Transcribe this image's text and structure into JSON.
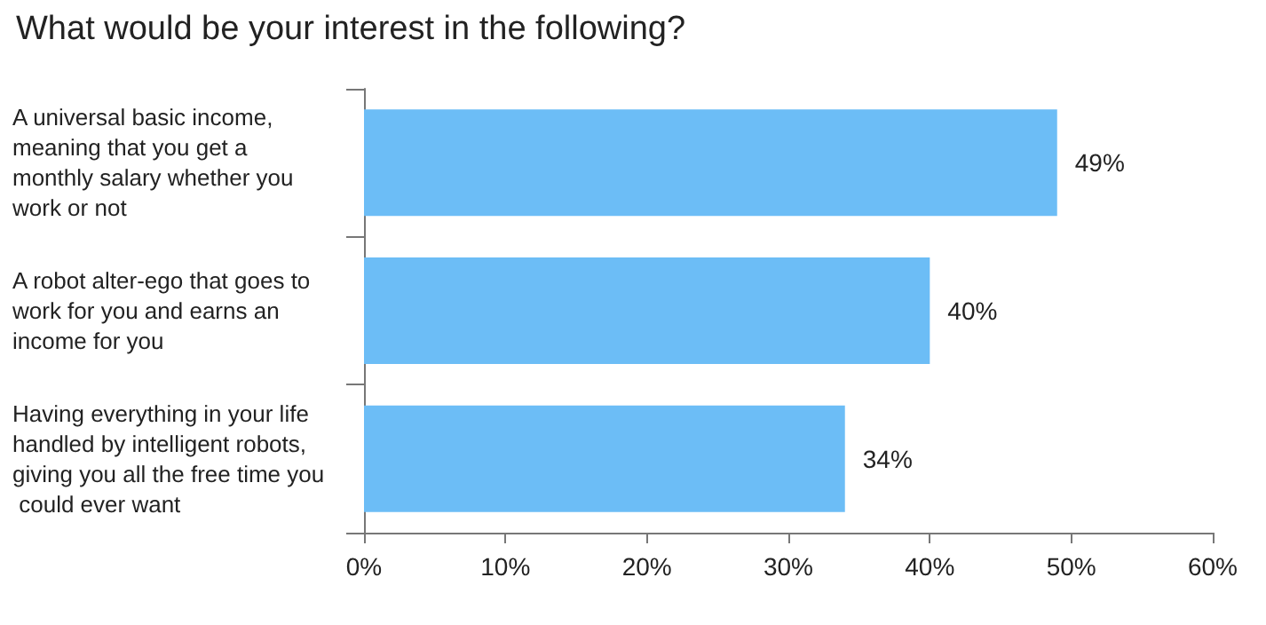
{
  "chart_data": {
    "type": "bar",
    "orientation": "horizontal",
    "title": "What would be your interest in the following?",
    "categories": [
      "A universal basic income, meaning that you get a monthly salary whether you work or not",
      "A robot alter-ego that goes to work for you and earns an income for you",
      "Having everything in your life handled by intelligent robots, giving you all the free time you could ever want"
    ],
    "values": [
      49,
      40,
      34
    ],
    "value_labels": [
      "49%",
      "40%",
      "34%"
    ],
    "color": "#6cbdf6",
    "xlim": [
      0,
      60
    ],
    "xticks": [
      {
        "value": 0,
        "label": "0%"
      },
      {
        "value": 10,
        "label": "10%"
      },
      {
        "value": 20,
        "label": "20%"
      },
      {
        "value": 30,
        "label": "30%"
      },
      {
        "value": 40,
        "label": "40%"
      },
      {
        "value": 50,
        "label": "50%"
      },
      {
        "value": 60,
        "label": "60%"
      }
    ],
    "grid": false
  }
}
